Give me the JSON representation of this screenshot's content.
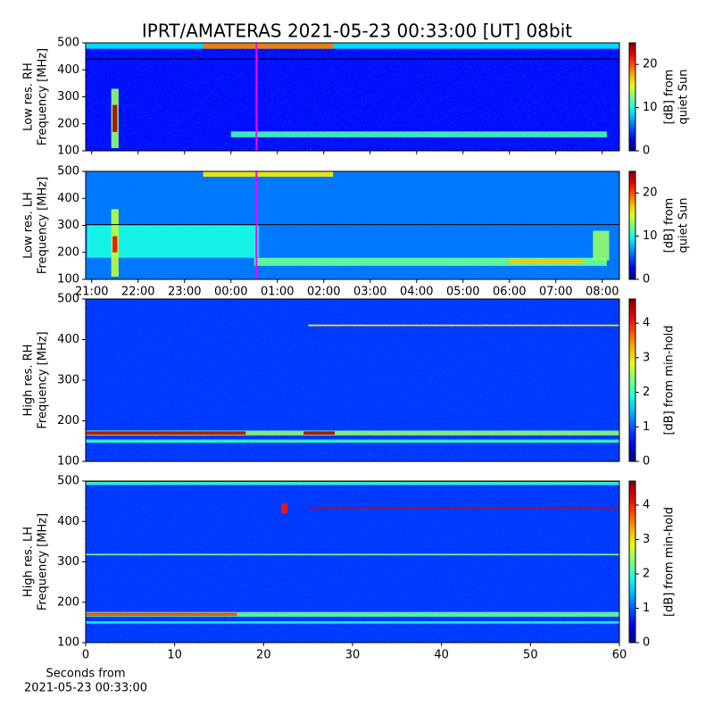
{
  "title": "IPRT/AMATERAS 2021-05-23 00:33:00 [UT]   08bit",
  "chart_data": [
    {
      "type": "heatmap",
      "ylabel_lines": [
        "Low res. RH",
        "Frequency [MHz]"
      ],
      "xlim": [
        20.87,
        32.37
      ],
      "xticks": [
        21,
        22,
        23,
        24,
        25,
        26,
        27,
        28,
        29,
        30,
        31,
        32
      ],
      "ylim": [
        100,
        500
      ],
      "yticks": [
        100,
        200,
        300,
        400,
        500
      ],
      "background_level": 3,
      "colorbar": {
        "label_lines": [
          "[dB] from",
          "quiet Sun"
        ],
        "lim": [
          0,
          25
        ],
        "ticks": [
          0,
          10,
          20
        ]
      },
      "features": [
        {
          "x": [
            20.87,
            32.37
          ],
          "y": [
            478,
            500
          ],
          "level": 9
        },
        {
          "x": [
            23.4,
            26.2
          ],
          "y": [
            478,
            500
          ],
          "level": 19
        },
        {
          "x": [
            24.0,
            32.1
          ],
          "y": [
            150,
            172
          ],
          "level": 11
        },
        {
          "x": [
            21.42,
            21.58
          ],
          "y": [
            110,
            330
          ],
          "level": 13
        },
        {
          "x": [
            21.45,
            21.55
          ],
          "y": [
            170,
            270
          ],
          "level": 24
        }
      ],
      "hline": {
        "y": 440,
        "color": "#000000"
      },
      "marker": {
        "x": 24.55,
        "color": "#ff00ff"
      }
    },
    {
      "type": "heatmap",
      "ylabel_lines": [
        "Low res. LH",
        "Frequency [MHz]"
      ],
      "xlim": [
        20.87,
        32.37
      ],
      "xticks": [
        {
          "value": 21,
          "label": "21:00"
        },
        {
          "value": 22,
          "label": "22:00"
        },
        {
          "value": 23,
          "label": "23:00"
        },
        {
          "value": 24,
          "label": "00:00"
        },
        {
          "value": 25,
          "label": "01:00"
        },
        {
          "value": 26,
          "label": "02:00"
        },
        {
          "value": 27,
          "label": "03:00"
        },
        {
          "value": 28,
          "label": "04:00"
        },
        {
          "value": 29,
          "label": "05:00"
        },
        {
          "value": 30,
          "label": "06:00"
        },
        {
          "value": 31,
          "label": "07:00"
        },
        {
          "value": 32,
          "label": "08:00"
        }
      ],
      "ylim": [
        100,
        500
      ],
      "yticks": [
        100,
        200,
        300,
        400,
        500
      ],
      "background_level": 6,
      "colorbar": {
        "label_lines": [
          "[dB] from",
          "quiet Sun"
        ],
        "lim": [
          0,
          25
        ],
        "ticks": [
          0,
          10,
          20
        ]
      },
      "features": [
        {
          "x": [
            20.9,
            24.6
          ],
          "y": [
            180,
            300
          ],
          "level": 10
        },
        {
          "x": [
            24.5,
            32.1
          ],
          "y": [
            150,
            180
          ],
          "level": 12
        },
        {
          "x": [
            30.0,
            31.6
          ],
          "y": [
            160,
            176
          ],
          "level": 17
        },
        {
          "x": [
            23.4,
            26.2
          ],
          "y": [
            480,
            500
          ],
          "level": 16
        },
        {
          "x": [
            31.8,
            32.15
          ],
          "y": [
            170,
            280
          ],
          "level": 13
        },
        {
          "x": [
            21.42,
            21.58
          ],
          "y": [
            110,
            360
          ],
          "level": 14
        },
        {
          "x": [
            21.45,
            21.55
          ],
          "y": [
            200,
            260
          ],
          "level": 22
        }
      ],
      "hline": {
        "y": 303,
        "color": "#000000"
      },
      "marker": {
        "x": 24.55,
        "color": "#ff00ff"
      }
    },
    {
      "type": "heatmap",
      "ylabel_lines": [
        "High res. RH",
        "Frequency [MHz]"
      ],
      "xlim": [
        0,
        60
      ],
      "ylim": [
        100,
        500
      ],
      "yticks": [
        100,
        200,
        300,
        400,
        500
      ],
      "background_level": 0.8,
      "colorbar": {
        "label_lines": [
          "[dB] from min-hold"
        ],
        "lim": [
          0,
          4.7
        ],
        "ticks": [
          0,
          1,
          2,
          3,
          4
        ]
      },
      "features": [
        {
          "x": [
            0,
            60
          ],
          "y": [
            164,
            176
          ],
          "level": 2.4
        },
        {
          "x": [
            0,
            18
          ],
          "y": [
            166,
            174
          ],
          "level": 4.4
        },
        {
          "x": [
            24.5,
            28
          ],
          "y": [
            166,
            174
          ],
          "level": 4.5
        },
        {
          "x": [
            0,
            60
          ],
          "y": [
            146,
            154
          ],
          "level": 2.0
        },
        {
          "x": [
            25,
            60
          ],
          "y": [
            433,
            437
          ],
          "level": 3.0
        }
      ]
    },
    {
      "type": "heatmap",
      "ylabel_lines": [
        "High res. LH",
        "Frequency [MHz]"
      ],
      "xlim": [
        0,
        60
      ],
      "xticks": [
        0,
        10,
        20,
        30,
        40,
        50,
        60
      ],
      "xlabel_lines": [
        "Seconds from",
        "2021-05-23 00:33:00"
      ],
      "ylim": [
        100,
        500
      ],
      "yticks": [
        100,
        200,
        300,
        400,
        500
      ],
      "background_level": 0.8,
      "colorbar": {
        "label_lines": [
          "[dB] from min-hold"
        ],
        "lim": [
          0,
          4.7
        ],
        "ticks": [
          0,
          1,
          2,
          3,
          4
        ]
      },
      "features": [
        {
          "x": [
            0,
            60
          ],
          "y": [
            164,
            176
          ],
          "level": 2.2
        },
        {
          "x": [
            0,
            17
          ],
          "y": [
            166,
            174
          ],
          "level": 3.8
        },
        {
          "x": [
            0,
            60
          ],
          "y": [
            147,
            153
          ],
          "level": 1.8
        },
        {
          "x": [
            0,
            60
          ],
          "y": [
            316,
            320
          ],
          "level": 2.4
        },
        {
          "x": [
            22,
            22.7
          ],
          "y": [
            420,
            445
          ],
          "level": 4.0
        },
        {
          "x": [
            25,
            60
          ],
          "y": [
            432,
            436
          ],
          "level": 4.3
        },
        {
          "x": [
            0,
            60
          ],
          "y": [
            490,
            498
          ],
          "level": 2.0
        }
      ]
    }
  ]
}
